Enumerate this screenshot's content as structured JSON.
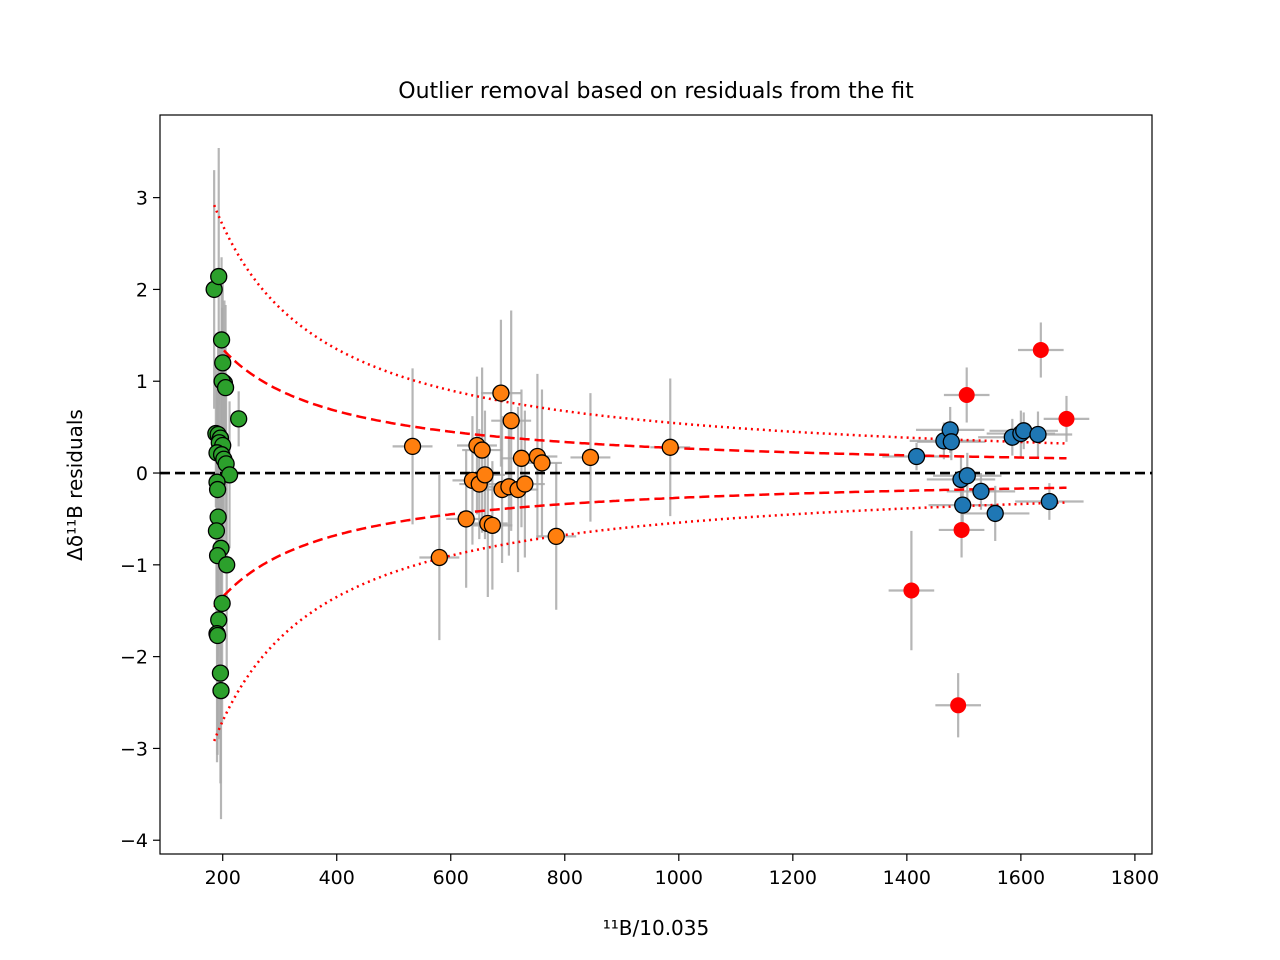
{
  "chart_data": {
    "type": "scatter",
    "title": "Outlier removal based on residuals from the fit",
    "xlabel": "¹¹B/10.035",
    "ylabel": "Δδ¹¹B residuals",
    "xlim": [
      90,
      1830
    ],
    "ylim": [
      -4.15,
      3.9
    ],
    "xticks": [
      200,
      400,
      600,
      800,
      1000,
      1200,
      1400,
      1600,
      1800
    ],
    "xtick_labels": [
      "200",
      "400",
      "600",
      "800",
      "1000",
      "1200",
      "1400",
      "1600",
      "1800"
    ],
    "yticks": [
      -4,
      -3,
      -2,
      -1,
      0,
      1,
      2,
      3
    ],
    "ytick_labels": [
      "−4",
      "−3",
      "−2",
      "−1",
      "0",
      "1",
      "2",
      "3"
    ],
    "colors": {
      "green": "#2ca02c",
      "orange": "#ff7f0e",
      "blue": "#1f77b4",
      "outlier": "#ff0000",
      "errorbar": "#a9a9a9",
      "fit": "#ff0000",
      "zero": "#000000"
    },
    "zero_line": 0,
    "bounds": {
      "x_start": 185,
      "x_end": 1680,
      "dashed_coef": 270,
      "dotted_coef": 540
    },
    "series": [
      {
        "name": "green",
        "color": "#2ca02c",
        "xerr": 8,
        "points": [
          [
            185,
            2.0,
            1.3
          ],
          [
            193,
            2.14,
            1.4
          ],
          [
            198,
            1.45,
            0.9
          ],
          [
            200,
            1.2,
            1.0
          ],
          [
            203,
            0.98,
            0.9
          ],
          [
            199,
            1.0,
            0.8
          ],
          [
            205,
            0.93,
            0.9
          ],
          [
            228,
            0.59,
            0.3
          ],
          [
            188,
            0.43,
            0.8
          ],
          [
            192,
            0.42,
            1.0
          ],
          [
            196,
            0.38,
            1.1
          ],
          [
            194,
            0.33,
            1.0
          ],
          [
            200,
            0.3,
            0.9
          ],
          [
            190,
            0.22,
            0.8
          ],
          [
            198,
            0.2,
            1.1
          ],
          [
            202,
            0.15,
            1.0
          ],
          [
            206,
            0.1,
            0.9
          ],
          [
            212,
            -0.02,
            0.8
          ],
          [
            190,
            -0.1,
            0.9
          ],
          [
            191,
            -0.18,
            1.0
          ],
          [
            192,
            -0.48,
            0.9
          ],
          [
            189,
            -0.63,
            1.0
          ],
          [
            197,
            -0.82,
            0.8
          ],
          [
            191,
            -0.9,
            1.1
          ],
          [
            207,
            -1.0,
            1.2
          ],
          [
            199,
            -1.42,
            1.3
          ],
          [
            193,
            -1.6,
            1.3
          ],
          [
            190,
            -1.75,
            1.4
          ],
          [
            191,
            -1.77,
            1.3
          ],
          [
            196,
            -2.18,
            1.2
          ],
          [
            197,
            -2.37,
            1.4
          ]
        ]
      },
      {
        "name": "orange",
        "color": "#ff7f0e",
        "xerr": 35,
        "points": [
          [
            533,
            0.29,
            0.85
          ],
          [
            580,
            -0.92,
            0.9
          ],
          [
            627,
            -0.5,
            0.75
          ],
          [
            638,
            -0.08,
            0.7
          ],
          [
            646,
            0.3,
            0.75
          ],
          [
            650,
            -0.12,
            0.6
          ],
          [
            655,
            0.25,
            0.9
          ],
          [
            660,
            -0.02,
            0.7
          ],
          [
            665,
            -0.55,
            0.8
          ],
          [
            673,
            -0.57,
            0.7
          ],
          [
            688,
            0.87,
            0.8
          ],
          [
            690,
            -0.18,
            0.8
          ],
          [
            702,
            -0.15,
            0.75
          ],
          [
            706,
            0.57,
            1.2
          ],
          [
            718,
            -0.18,
            0.9
          ],
          [
            724,
            0.16,
            0.75
          ],
          [
            730,
            -0.12,
            0.8
          ],
          [
            752,
            0.18,
            0.9
          ],
          [
            760,
            0.11,
            0.8
          ],
          [
            785,
            -0.69,
            0.8
          ],
          [
            845,
            0.17,
            0.7
          ],
          [
            985,
            0.28,
            0.75
          ]
        ]
      },
      {
        "name": "blue",
        "color": "#1f77b4",
        "xerr": 60,
        "points": [
          [
            1417,
            0.18,
            0.15
          ],
          [
            1465,
            0.35,
            0.2
          ],
          [
            1476,
            0.47,
            0.25
          ],
          [
            1478,
            0.34,
            0.2
          ],
          [
            1495,
            -0.07,
            0.25
          ],
          [
            1498,
            -0.35,
            0.3
          ],
          [
            1506,
            -0.03,
            0.25
          ],
          [
            1530,
            -0.2,
            0.2
          ],
          [
            1555,
            -0.44,
            0.3
          ],
          [
            1585,
            0.39,
            0.2
          ],
          [
            1600,
            0.43,
            0.25
          ],
          [
            1605,
            0.46,
            0.2
          ],
          [
            1630,
            0.42,
            0.25
          ],
          [
            1650,
            -0.31,
            0.2
          ]
        ]
      },
      {
        "name": "outliers",
        "color": "#ff0000",
        "xerr": 40,
        "points": [
          [
            1408,
            -1.28,
            0.65
          ],
          [
            1490,
            -2.53,
            0.35
          ],
          [
            1496,
            -0.62,
            0.3
          ],
          [
            1505,
            0.85,
            0.3
          ],
          [
            1635,
            1.34,
            0.3
          ],
          [
            1680,
            0.59,
            0.25
          ]
        ]
      }
    ]
  }
}
